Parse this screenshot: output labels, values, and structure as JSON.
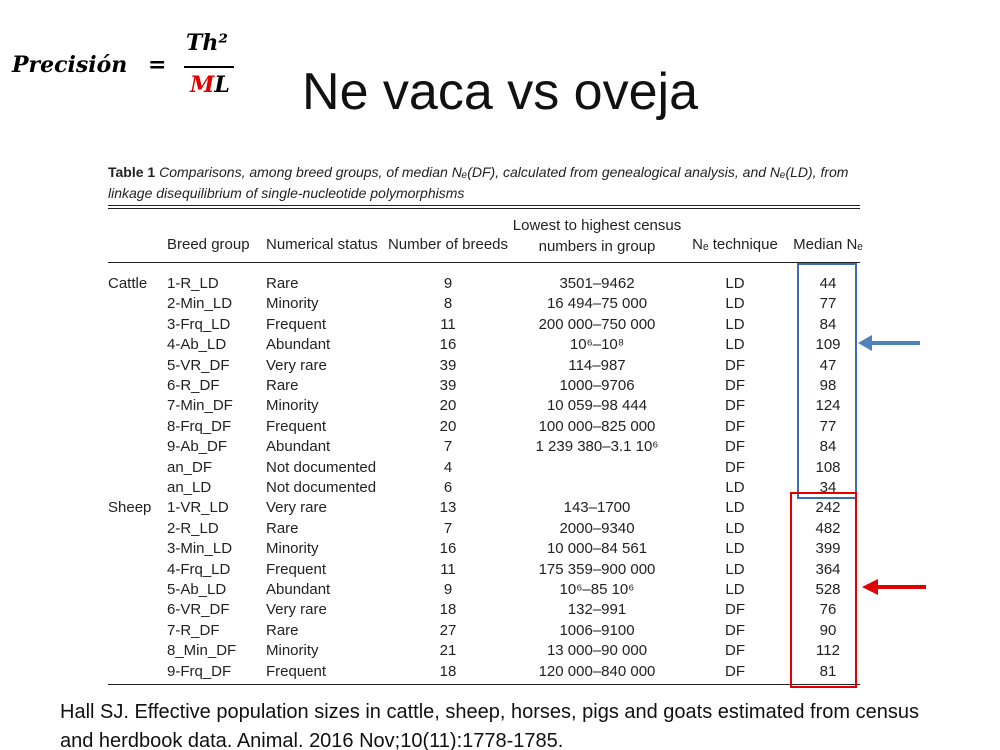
{
  "formula": {
    "lhs": "Precisión",
    "equals": "=",
    "numerator": "Th²",
    "denominator_red": "M",
    "denominator_rest": "L"
  },
  "title": "Ne vaca vs oveja",
  "table": {
    "label": "Table 1",
    "caption": "Comparisons, among breed groups, of median Nₑ(DF), calculated from genealogical analysis, and Nₑ(LD), from linkage disequilibrium of single-nucleotide polymorphisms",
    "header": [
      null,
      "Breed group",
      "Numerical status",
      "Number of breeds",
      "Lowest to highest census numbers in group",
      "Nₑ technique",
      "Median Nₑ"
    ],
    "rows": [
      [
        "Cattle",
        "1-R_LD",
        "Rare",
        9,
        "3501–9462",
        "LD",
        44
      ],
      [
        null,
        "2-Min_LD",
        "Minority",
        8,
        "16 494–75 000",
        "LD",
        77
      ],
      [
        null,
        "3-Frq_LD",
        "Frequent",
        11,
        "200 000–750 000",
        "LD",
        84
      ],
      [
        null,
        "4-Ab_LD",
        "Abundant",
        16,
        "10⁶–10⁸",
        "LD",
        109
      ],
      [
        null,
        "5-VR_DF",
        "Very rare",
        39,
        "114–987",
        "DF",
        47
      ],
      [
        null,
        "6-R_DF",
        "Rare",
        39,
        "1000–9706",
        "DF",
        98
      ],
      [
        null,
        "7-Min_DF",
        "Minority",
        20,
        "10 059–98 444",
        "DF",
        124
      ],
      [
        null,
        "8-Frq_DF",
        "Frequent",
        20,
        "100 000–825 000",
        "DF",
        77
      ],
      [
        null,
        "9-Ab_DF",
        "Abundant",
        7,
        "1 239 380–3.1 10⁶",
        "DF",
        84
      ],
      [
        null,
        "an_DF",
        "Not documented",
        4,
        null,
        "DF",
        108
      ],
      [
        null,
        "an_LD",
        "Not documented",
        6,
        null,
        "LD",
        34
      ],
      [
        "Sheep",
        "1-VR_LD",
        "Very rare",
        13,
        "143–1700",
        "LD",
        242
      ],
      [
        null,
        "2-R_LD",
        "Rare",
        7,
        "2000–9340",
        "LD",
        482
      ],
      [
        null,
        "3-Min_LD",
        "Minority",
        16,
        "10 000–84 561",
        "LD",
        399
      ],
      [
        null,
        "4-Frq_LD",
        "Frequent",
        11,
        "175 359–900 000",
        "LD",
        364
      ],
      [
        null,
        "5-Ab_LD",
        "Abundant",
        9,
        "10⁶–85 10⁶",
        "LD",
        528
      ],
      [
        null,
        "6-VR_DF",
        "Very rare",
        18,
        "132–991",
        "DF",
        76
      ],
      [
        null,
        "7-R_DF",
        "Rare",
        27,
        "1006–9100",
        "DF",
        90
      ],
      [
        null,
        "8_Min_DF",
        "Minority",
        21,
        "13 000–90 000",
        "DF",
        112
      ],
      [
        null,
        "9-Frq_DF",
        "Frequent",
        18,
        "120 000–840 000",
        "DF",
        81
      ]
    ]
  },
  "citation": "Hall SJ. Effective population sizes in cattle, sheep, horses, pigs and goats estimated from census and herdbook data. Animal. 2016 Nov;10(11):1778-1785."
}
